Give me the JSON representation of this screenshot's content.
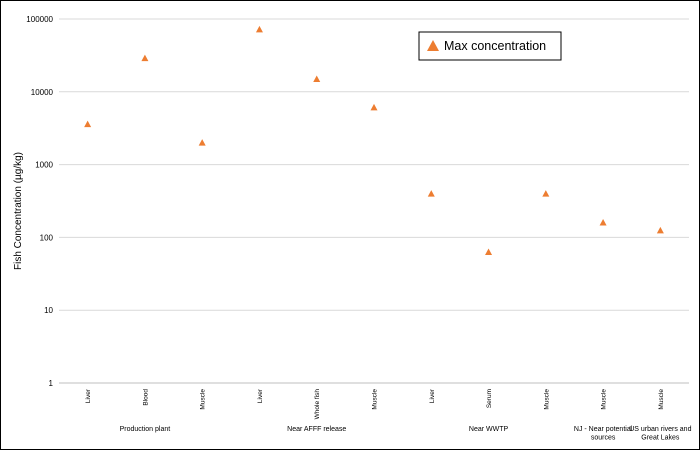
{
  "chart_data": {
    "type": "scatter",
    "ylabel": "Fish Concentration (µg/kg)",
    "yscale": "log",
    "ylim": [
      1,
      100000
    ],
    "yticks": [
      "1",
      "10",
      "100",
      "1000",
      "10000",
      "100000"
    ],
    "grid": true,
    "legend": {
      "position": "top-right",
      "entries": [
        "Max concentration"
      ]
    },
    "categories": [
      "Liver",
      "Blood",
      "Muscle",
      "Liver",
      "Whole fish",
      "Muscle",
      "Liver",
      "Serum",
      "Muscle",
      "Muscle",
      "Muscle"
    ],
    "groups": [
      {
        "label": "Production plant",
        "lines": [
          "Production plant"
        ],
        "categories": [
          "Liver",
          "Blood",
          "Muscle"
        ]
      },
      {
        "label": "Near AFFF release",
        "lines": [
          "Near AFFF release"
        ],
        "categories": [
          "Liver",
          "Whole fish",
          "Muscle"
        ]
      },
      {
        "label": "Near WWTP",
        "lines": [
          "Near WWTP"
        ],
        "categories": [
          "Liver",
          "Serum",
          "Muscle"
        ]
      },
      {
        "label": "NJ - Near potential sources",
        "lines": [
          "NJ - Near potential",
          "sources"
        ],
        "categories": [
          "Muscle"
        ]
      },
      {
        "label": "US urban rivers and Great Lakes",
        "lines": [
          "US urban rivers and",
          "Great Lakes"
        ],
        "categories": [
          "Muscle"
        ]
      }
    ],
    "series": [
      {
        "name": "Max concentration",
        "color": "#ed7d31",
        "marker": "triangle",
        "values": [
          3600,
          29000,
          2000,
          72000,
          15000,
          6100,
          400,
          63,
          400,
          160,
          125
        ]
      }
    ]
  }
}
